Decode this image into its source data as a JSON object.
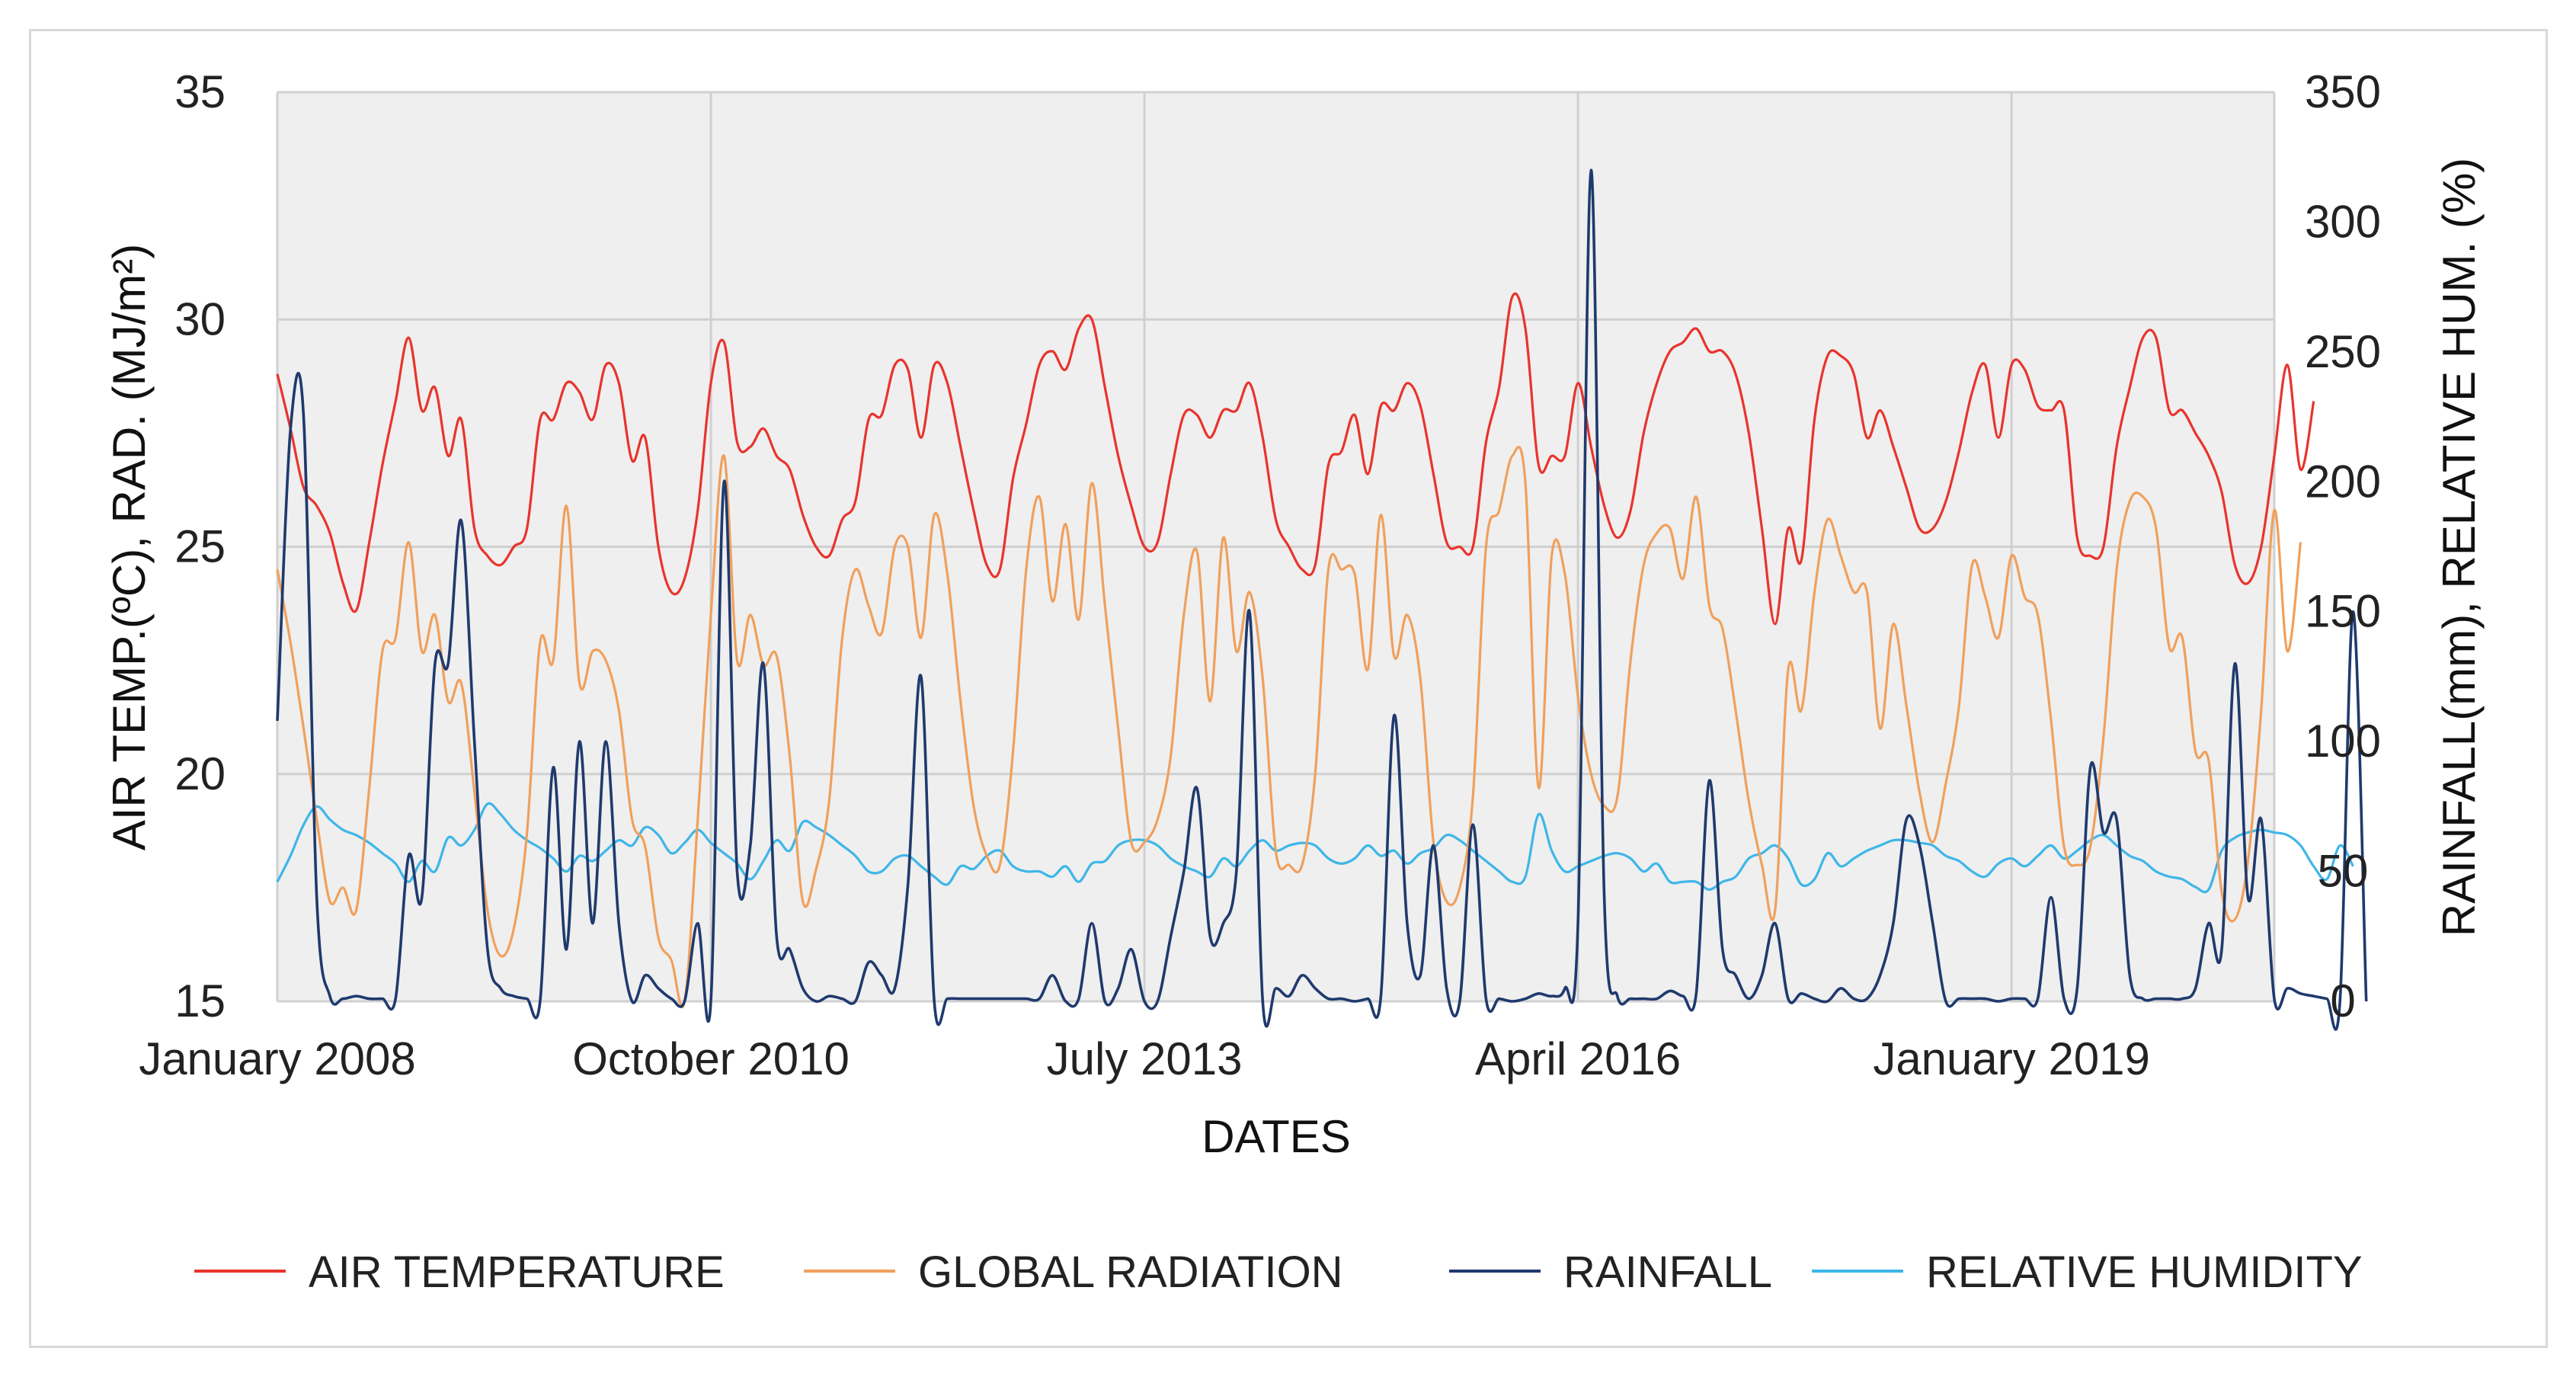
{
  "chart_data": {
    "type": "line",
    "xlabel": "DATES",
    "ylabel_left": "AIR TEMP.(ºC), RAD. (MJ/m²)",
    "ylabel_right": "RAINFALL(mm),  RELATIVE HUM. (%)",
    "ylim_left": [
      15,
      35
    ],
    "ylim_right": [
      0,
      350
    ],
    "yticks_left": [
      "15",
      "20",
      "25",
      "30",
      "35"
    ],
    "yticks_right": [
      "0",
      "50",
      "100",
      "150",
      "200",
      "250",
      "300",
      "350"
    ],
    "xticks": [
      "January 2008",
      "October 2010",
      "July 2013",
      "April 2016",
      "January 2019"
    ],
    "xlim": [
      "2008-01",
      "2020-09"
    ],
    "grid": true,
    "legend_position": "bottom",
    "colors": {
      "AIR TEMPERATURE": "#e8342c",
      "GLOBAL RADIATION": "#f0a05c",
      "RAINFALL": "#1f3a6e",
      "RELATIVE HUMIDITY": "#3eb6e8",
      "plot_bg": "#efefef",
      "grid": "#d0d0d0"
    },
    "series": [
      {
        "name": "AIR TEMPERATURE",
        "axis": "left",
        "x_start": "2008-01",
        "values": [
          28.8,
          27.6,
          26.3,
          25.9,
          25.3,
          24.2,
          23.6,
          25.1,
          26.8,
          28.2,
          29.6,
          28.0,
          28.5,
          27.0,
          27.8,
          25.4,
          24.8,
          24.6,
          25.0,
          25.4,
          27.8,
          27.8,
          28.6,
          28.4,
          27.8,
          29.0,
          28.6,
          26.9,
          27.4,
          25.0,
          24.0,
          24.3,
          25.8,
          28.6,
          29.5,
          27.3,
          27.2,
          27.6,
          27.0,
          26.7,
          25.7,
          25.0,
          24.8,
          25.6,
          26.0,
          27.8,
          27.9,
          29.0,
          28.9,
          27.4,
          29.0,
          28.6,
          27.2,
          25.8,
          24.6,
          24.5,
          26.5,
          27.7,
          29.0,
          29.3,
          28.9,
          29.8,
          30.0,
          28.5,
          27.0,
          25.9,
          25.0,
          25.1,
          26.6,
          27.9,
          27.9,
          27.4,
          28.0,
          28.0,
          28.6,
          27.4,
          25.6,
          25.0,
          24.5,
          24.6,
          26.8,
          27.1,
          27.9,
          26.6,
          28.1,
          28.0,
          28.6,
          28.1,
          26.6,
          25.1,
          25.0,
          25.0,
          27.3,
          28.5,
          30.5,
          29.8,
          26.8,
          27.0,
          27.0,
          28.6,
          27.2,
          25.9,
          25.2,
          25.8,
          27.5,
          28.6,
          29.3,
          29.5,
          29.8,
          29.3,
          29.3,
          28.8,
          27.5,
          25.4,
          23.3,
          25.4,
          24.7,
          27.8,
          29.2,
          29.2,
          28.8,
          27.4,
          28.0,
          27.2,
          26.3,
          25.4,
          25.4,
          26.0,
          27.1,
          28.4,
          29.0,
          27.4,
          29.0,
          28.9,
          28.1,
          28.0,
          28.0,
          25.2,
          24.8,
          25.0,
          27.2,
          28.5,
          29.6,
          29.6,
          28.0,
          28.0,
          27.5,
          27.0,
          26.2,
          24.6,
          24.2,
          25.0,
          27.0,
          29.0,
          26.7,
          28.2
        ]
      },
      {
        "name": "GLOBAL RADIATION",
        "axis": "left",
        "x_start": "2008-01",
        "values": [
          24.5,
          22.9,
          21.0,
          19.0,
          17.2,
          17.5,
          17.0,
          19.7,
          22.7,
          23.0,
          25.1,
          22.7,
          23.5,
          21.6,
          22.0,
          19.6,
          17.0,
          16.0,
          16.6,
          18.7,
          22.9,
          22.5,
          25.9,
          22.0,
          22.7,
          22.5,
          21.4,
          19.0,
          18.4,
          16.4,
          15.9,
          15.0,
          19.0,
          23.5,
          27.0,
          22.5,
          23.5,
          22.4,
          22.6,
          20.4,
          17.2,
          17.9,
          19.4,
          23.0,
          24.5,
          23.7,
          23.1,
          25.0,
          25.0,
          23.0,
          25.7,
          24.4,
          21.6,
          19.3,
          18.2,
          18.0,
          20.5,
          24.5,
          26.1,
          23.8,
          25.5,
          23.4,
          26.4,
          23.7,
          21.0,
          18.5,
          18.5,
          19.0,
          20.4,
          23.5,
          24.9,
          21.6,
          25.2,
          22.7,
          24.0,
          22.1,
          18.3,
          18.0,
          18.0,
          20.0,
          24.5,
          24.5,
          24.4,
          22.3,
          25.7,
          22.6,
          23.5,
          22.1,
          18.5,
          17.2,
          17.5,
          19.5,
          25.0,
          25.8,
          27.0,
          26.4,
          19.7,
          24.8,
          24.4,
          21.7,
          20.0,
          19.3,
          19.5,
          22.5,
          24.6,
          25.3,
          25.4,
          24.3,
          26.1,
          23.7,
          23.2,
          21.4,
          19.4,
          18.0,
          17.0,
          22.3,
          21.4,
          24.0,
          25.6,
          24.8,
          24.0,
          24.0,
          21.0,
          23.3,
          21.5,
          19.6,
          18.5,
          19.8,
          21.5,
          24.6,
          23.9,
          23.0,
          24.8,
          23.9,
          23.5,
          21.2,
          18.4,
          18.0,
          18.4,
          20.8,
          24.5,
          26.0,
          26.1,
          25.4,
          22.8,
          23.0,
          20.5,
          20.3,
          17.4,
          16.8,
          18.1,
          21.4,
          25.8,
          22.7,
          25.1
        ]
      },
      {
        "name": "RAINFALL",
        "axis": "right",
        "x_start": "2008-01",
        "values": [
          108,
          220,
          225,
          40,
          2,
          1,
          2,
          1,
          1,
          1,
          56,
          40,
          130,
          130,
          185,
          100,
          20,
          5,
          2,
          1,
          0,
          90,
          20,
          100,
          30,
          100,
          30,
          0,
          10,
          5,
          1,
          0,
          30,
          0,
          200,
          50,
          60,
          130,
          25,
          20,
          5,
          0,
          2,
          1,
          0,
          15,
          10,
          5,
          45,
          125,
          0,
          1,
          1,
          1,
          1,
          1,
          1,
          1,
          1,
          10,
          0,
          1,
          30,
          0,
          5,
          20,
          0,
          0,
          25,
          50,
          82,
          25,
          30,
          50,
          150,
          0,
          5,
          2,
          10,
          5,
          1,
          1,
          0,
          1,
          2,
          110,
          30,
          10,
          60,
          5,
          0,
          68,
          1,
          1,
          0,
          1,
          3,
          2,
          5,
          30,
          320,
          40,
          2,
          1,
          1,
          1,
          4,
          2,
          3,
          85,
          20,
          10,
          1,
          10,
          30,
          1,
          3,
          1,
          0,
          5,
          1,
          1,
          10,
          30,
          70,
          60,
          30,
          0,
          1,
          1,
          1,
          0,
          1,
          1,
          1,
          40,
          1,
          5,
          90,
          65,
          70,
          10,
          1,
          1,
          1,
          1,
          5,
          30,
          20,
          130,
          40,
          70,
          1,
          5,
          3,
          2,
          1,
          0,
          150,
          0
        ]
      },
      {
        "name": "RELATIVE HUMIDITY",
        "axis": "right",
        "x_start": "2008-01",
        "values": [
          46,
          56,
          68,
          75,
          70,
          66,
          64,
          61,
          57,
          53,
          46,
          54,
          50,
          63,
          60,
          66,
          76,
          72,
          66,
          62,
          59,
          55,
          50,
          56,
          54,
          58,
          62,
          60,
          67,
          64,
          57,
          61,
          66,
          61,
          57,
          53,
          47,
          54,
          62,
          58,
          69,
          67,
          64,
          60,
          56,
          50,
          50,
          55,
          56,
          52,
          48,
          45,
          52,
          51,
          56,
          58,
          52,
          50,
          50,
          48,
          52,
          46,
          53,
          54,
          60,
          62,
          62,
          60,
          55,
          52,
          50,
          48,
          55,
          52,
          58,
          62,
          58,
          60,
          61,
          60,
          55,
          53,
          55,
          60,
          56,
          58,
          53,
          57,
          59,
          64,
          62,
          58,
          54,
          50,
          46,
          48,
          72,
          58,
          50,
          52,
          54,
          56,
          57,
          55,
          50,
          53,
          46,
          46,
          46,
          43,
          46,
          48,
          55,
          57,
          60,
          55,
          45,
          47,
          57,
          52,
          55,
          58,
          60,
          62,
          62,
          61,
          60,
          56,
          54,
          50,
          48,
          53,
          55,
          52,
          56,
          60,
          55,
          58,
          62,
          64,
          60,
          56,
          54,
          50,
          48,
          47,
          44,
          43,
          58,
          63,
          65,
          66,
          65,
          64,
          60,
          52,
          47,
          60,
          52
        ]
      }
    ]
  },
  "legend": [
    {
      "label": "AIR TEMPERATURE",
      "color": "#e8342c"
    },
    {
      "label": "GLOBAL RADIATION",
      "color": "#f0a05c"
    },
    {
      "label": "RAINFALL",
      "color": "#1f3a6e"
    },
    {
      "label": "RELATIVE HUMIDITY",
      "color": "#3eb6e8"
    }
  ]
}
